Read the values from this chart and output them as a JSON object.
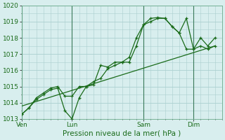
{
  "bg_color": "#d8eeee",
  "plot_bg_color": "#d8eeee",
  "grid_color": "#aacfcf",
  "line_color": "#1a6b1a",
  "title": "Pression niveau de la mer( hPa )",
  "ylim": [
    1013,
    1020
  ],
  "yticks": [
    1013,
    1014,
    1015,
    1016,
    1017,
    1018,
    1019,
    1020
  ],
  "xtick_labels": [
    "Ven",
    "Lun",
    "Sam",
    "Dim"
  ],
  "xtick_positions": [
    0.0,
    3.5,
    8.5,
    12.0
  ],
  "vline_positions": [
    0.0,
    3.5,
    8.5,
    12.0
  ],
  "xlim": [
    0,
    14
  ],
  "series1_x": [
    0.0,
    0.5,
    1.0,
    1.5,
    2.0,
    2.5,
    3.0,
    3.5,
    4.0,
    4.5,
    5.0,
    5.5,
    6.0,
    6.5,
    7.0,
    7.5,
    8.0,
    8.5,
    9.0,
    9.5,
    10.0,
    10.5,
    11.0,
    11.5,
    12.0,
    12.5,
    13.0,
    13.5
  ],
  "series1_y": [
    1013.3,
    1013.7,
    1014.2,
    1014.5,
    1014.8,
    1014.9,
    1013.5,
    1013.0,
    1014.3,
    1015.0,
    1015.1,
    1016.3,
    1016.2,
    1016.5,
    1016.5,
    1016.5,
    1017.5,
    1018.8,
    1019.0,
    1019.2,
    1019.2,
    1018.7,
    1018.3,
    1019.2,
    1017.3,
    1018.0,
    1017.5,
    1018.0
  ],
  "series2_x": [
    0.0,
    0.5,
    1.0,
    1.5,
    2.0,
    2.5,
    3.0,
    3.5,
    4.0,
    4.5,
    5.0,
    5.5,
    6.0,
    6.5,
    7.0,
    7.5,
    8.0,
    8.5,
    9.0,
    9.5,
    10.0,
    10.5,
    11.0,
    11.5,
    12.0,
    12.5,
    13.0,
    13.5
  ],
  "series2_y": [
    1013.3,
    1013.7,
    1014.3,
    1014.6,
    1014.9,
    1015.0,
    1014.4,
    1014.4,
    1015.0,
    1015.0,
    1015.3,
    1015.5,
    1016.1,
    1016.3,
    1016.5,
    1016.8,
    1018.0,
    1018.8,
    1019.2,
    1019.25,
    1019.2,
    1018.7,
    1018.3,
    1017.3,
    1017.3,
    1017.5,
    1017.3,
    1017.5
  ],
  "trend_x": [
    0.0,
    13.5
  ],
  "trend_y": [
    1013.8,
    1017.5
  ]
}
